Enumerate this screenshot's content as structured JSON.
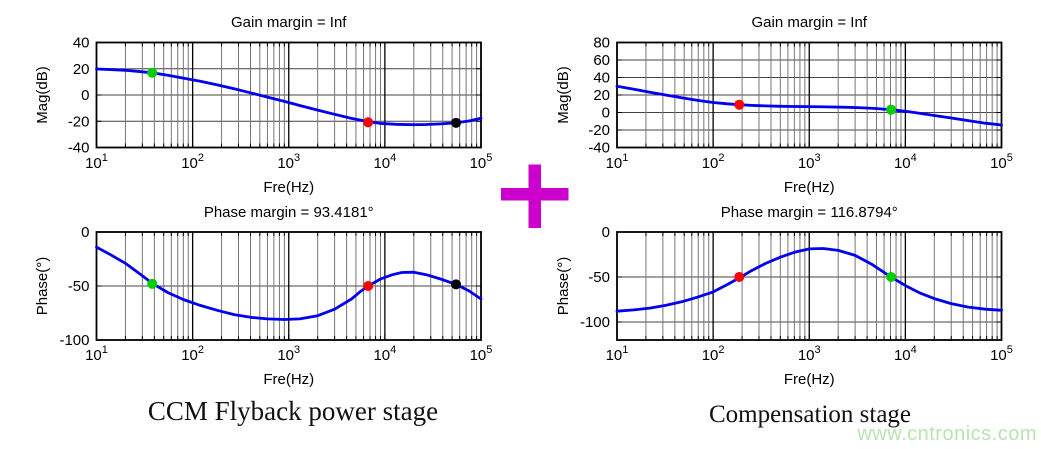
{
  "figure": {
    "left_caption": "CCM Flyback power stage",
    "right_caption": "Compensation stage",
    "watermark": {
      "text": "www.cntronics.com",
      "color": "#B9E4B0"
    },
    "plus": {
      "color": "#CC00CC"
    },
    "curve_color": "#0000EE",
    "grid_minor_color": "#777777",
    "grid_major_color": "#000000",
    "hgrid_color": "#444444"
  },
  "chart_data": [
    {
      "id": "power-mag",
      "type": "line",
      "title": "Gain margin = Inf",
      "xlabel": "Fre(Hz)",
      "ylabel": "Mag(dB)",
      "x_scale": "log",
      "xlim": [
        10,
        100000
      ],
      "x_tick_exponents": [
        1,
        2,
        3,
        4,
        5
      ],
      "ylim": [
        -40,
        40
      ],
      "yticks": [
        40,
        20,
        0,
        -20,
        -40
      ],
      "grid": true,
      "line_color": "#0000EE",
      "x": [
        10,
        15,
        22,
        30,
        38,
        55,
        80,
        120,
        180,
        270,
        400,
        600,
        900,
        1300,
        2000,
        3000,
        4500,
        6700,
        9000,
        13000,
        19000,
        27000,
        38000,
        55000,
        75000,
        100000
      ],
      "y": [
        19.8,
        19.3,
        18.6,
        17.7,
        16.9,
        15.1,
        12.9,
        10.5,
        7.7,
        4.7,
        1.7,
        -1.6,
        -4.9,
        -8.0,
        -11.5,
        -14.7,
        -17.8,
        -20.3,
        -21.6,
        -22.3,
        -22.6,
        -22.5,
        -22.0,
        -21.2,
        -19.8,
        -17.7
      ],
      "markers": [
        {
          "x": 38,
          "y": 17.0,
          "color": "#00CC00",
          "name": "green-marker-dot"
        },
        {
          "x": 6700,
          "y": -20.8,
          "color": "#FF0000",
          "name": "red-marker-dot"
        },
        {
          "x": 55000,
          "y": -21.2,
          "color": "#000000",
          "name": "black-marker-dot"
        }
      ]
    },
    {
      "id": "power-phase",
      "type": "line",
      "title": "Phase margin = 93.4181°",
      "xlabel": "Fre(Hz)",
      "ylabel": "Phase(°)",
      "x_scale": "log",
      "xlim": [
        10,
        100000
      ],
      "x_tick_exponents": [
        1,
        2,
        3,
        4,
        5
      ],
      "ylim": [
        -100,
        0
      ],
      "yticks": [
        0,
        -50,
        -100
      ],
      "grid": true,
      "line_color": "#0000EE",
      "x": [
        10,
        14,
        20,
        28,
        38,
        55,
        80,
        120,
        180,
        270,
        400,
        600,
        900,
        1300,
        2000,
        3000,
        4500,
        5500,
        6700,
        9000,
        12000,
        15000,
        20000,
        27000,
        38000,
        55000,
        75000,
        100000
      ],
      "y": [
        -14,
        -21,
        -29,
        -38.5,
        -47.5,
        -56,
        -62.5,
        -68,
        -72.5,
        -76.5,
        -79,
        -80.5,
        -81,
        -80.5,
        -77.5,
        -71.5,
        -62,
        -55.5,
        -50,
        -43.5,
        -39.5,
        -37.5,
        -37.2,
        -39.5,
        -43.5,
        -48.5,
        -54.5,
        -62
      ],
      "markers": [
        {
          "x": 38,
          "y": -48,
          "color": "#00CC00",
          "name": "green-marker-dot"
        },
        {
          "x": 6700,
          "y": -50,
          "color": "#FF0000",
          "name": "red-marker-dot"
        },
        {
          "x": 55000,
          "y": -48.5,
          "color": "#000000",
          "name": "black-marker-dot"
        }
      ]
    },
    {
      "id": "comp-mag",
      "type": "line",
      "title": "Gain margin = Inf",
      "xlabel": "Fre(Hz)",
      "ylabel": "Mag(dB)",
      "x_scale": "log",
      "xlim": [
        10,
        100000
      ],
      "x_tick_exponents": [
        1,
        2,
        3,
        4,
        5
      ],
      "ylim": [
        -40,
        80
      ],
      "yticks": [
        80,
        60,
        40,
        20,
        0,
        -20,
        -40
      ],
      "grid": true,
      "line_color": "#0000EE",
      "x": [
        10,
        15,
        22,
        32,
        47,
        68,
        100,
        140,
        187,
        250,
        350,
        500,
        700,
        1000,
        1500,
        2200,
        3200,
        4700,
        7100,
        10000,
        14000,
        20000,
        30000,
        45000,
        68000,
        100000
      ],
      "y": [
        30,
        26.6,
        23.2,
        20.0,
        16.8,
        13.9,
        11.4,
        9.9,
        8.9,
        8.1,
        7.5,
        7.1,
        6.9,
        6.7,
        6.4,
        6.1,
        5.6,
        4.7,
        3.2,
        1.4,
        -0.9,
        -3.4,
        -6.3,
        -9.3,
        -12.2,
        -14.3
      ],
      "markers": [
        {
          "x": 187,
          "y": 8.9,
          "color": "#FF0000",
          "name": "red-marker-dot"
        },
        {
          "x": 7100,
          "y": 3.2,
          "color": "#00CC00",
          "name": "green-marker-dot"
        }
      ]
    },
    {
      "id": "comp-phase",
      "type": "line",
      "title": "Phase margin = 116.8794°",
      "xlabel": "Fre(Hz)",
      "ylabel": "Phase(°)",
      "x_scale": "log",
      "xlim": [
        10,
        100000
      ],
      "x_tick_exponents": [
        1,
        2,
        3,
        4,
        5
      ],
      "ylim": [
        -120,
        0
      ],
      "yticks": [
        0,
        -50,
        -100
      ],
      "grid": true,
      "line_color": "#0000EE",
      "x": [
        10,
        15,
        22,
        32,
        47,
        68,
        100,
        140,
        187,
        250,
        350,
        500,
        700,
        1000,
        1400,
        2000,
        3000,
        4500,
        7100,
        10000,
        14000,
        20000,
        30000,
        45000,
        68000,
        100000
      ],
      "y": [
        -88,
        -86.5,
        -84.5,
        -81.5,
        -77.5,
        -72.5,
        -66.5,
        -58.5,
        -51,
        -43,
        -35,
        -28,
        -22.5,
        -18.8,
        -18.3,
        -20.5,
        -26,
        -36,
        -50,
        -59.5,
        -67.5,
        -74,
        -79.5,
        -83.5,
        -85.8,
        -87
      ],
      "markers": [
        {
          "x": 187,
          "y": -50,
          "color": "#FF0000",
          "name": "red-marker-dot"
        },
        {
          "x": 7100,
          "y": -50,
          "color": "#00CC00",
          "name": "green-marker-dot"
        }
      ]
    }
  ]
}
